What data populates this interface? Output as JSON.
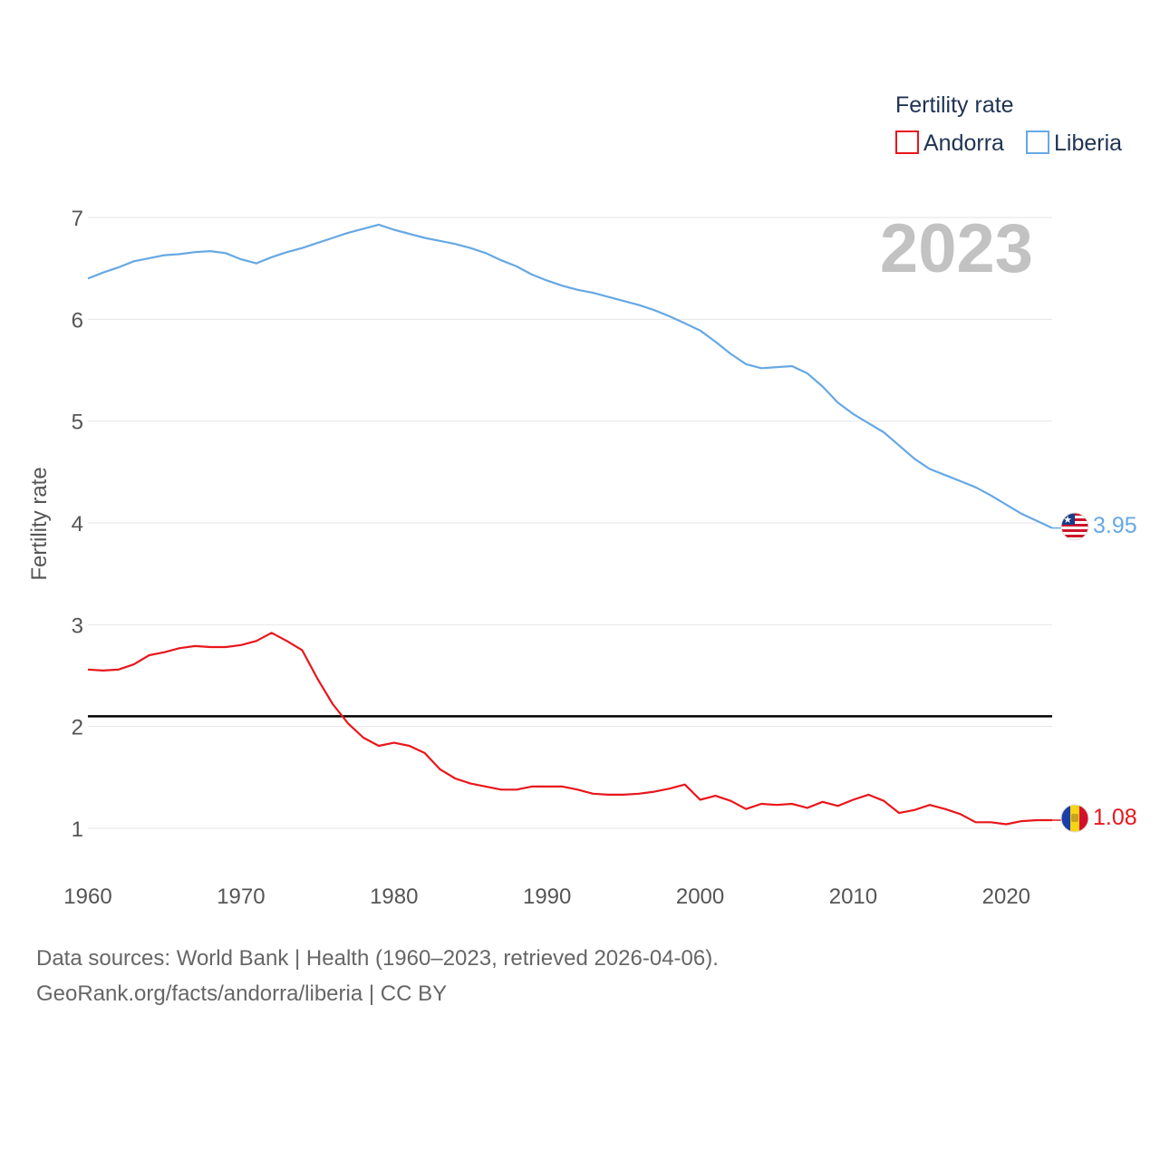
{
  "chart_data": {
    "type": "line",
    "title": "",
    "year_label": "2023",
    "ylabel": "Fertility rate",
    "xlabel": "",
    "xlim": [
      1960,
      2023
    ],
    "ylim": [
      0.3,
      7.4
    ],
    "x_ticks": [
      1960,
      1970,
      1980,
      1990,
      2000,
      2010,
      2020
    ],
    "y_ticks": [
      1,
      2,
      3,
      4,
      5,
      6,
      7
    ],
    "reference_line": 2.1,
    "legend": {
      "title": "Fertility rate",
      "position": "top-right"
    },
    "x": [
      1960,
      1961,
      1962,
      1963,
      1964,
      1965,
      1966,
      1967,
      1968,
      1969,
      1970,
      1971,
      1972,
      1973,
      1974,
      1975,
      1976,
      1977,
      1978,
      1979,
      1980,
      1981,
      1982,
      1983,
      1984,
      1985,
      1986,
      1987,
      1988,
      1989,
      1990,
      1991,
      1992,
      1993,
      1994,
      1995,
      1996,
      1997,
      1998,
      1999,
      2000,
      2001,
      2002,
      2003,
      2004,
      2005,
      2006,
      2007,
      2008,
      2009,
      2010,
      2011,
      2012,
      2013,
      2014,
      2015,
      2016,
      2017,
      2018,
      2019,
      2020,
      2021,
      2022,
      2023
    ],
    "series": [
      {
        "name": "Liberia",
        "color": "#66a8e4",
        "end_label": "3.95",
        "values": [
          6.4,
          6.46,
          6.51,
          6.57,
          6.6,
          6.63,
          6.64,
          6.66,
          6.67,
          6.65,
          6.59,
          6.55,
          6.61,
          6.66,
          6.7,
          6.75,
          6.8,
          6.85,
          6.89,
          6.93,
          6.88,
          6.84,
          6.8,
          6.77,
          6.74,
          6.7,
          6.65,
          6.58,
          6.52,
          6.44,
          6.38,
          6.33,
          6.29,
          6.26,
          6.22,
          6.18,
          6.14,
          6.09,
          6.03,
          5.96,
          5.89,
          5.78,
          5.66,
          5.56,
          5.52,
          5.53,
          5.54,
          5.47,
          5.34,
          5.18,
          5.07,
          4.98,
          4.89,
          4.76,
          4.63,
          4.53,
          4.47,
          4.41,
          4.35,
          4.27,
          4.18,
          4.09,
          4.02,
          3.95
        ]
      },
      {
        "name": "Andorra",
        "color": "#e8161b",
        "end_label": "1.08",
        "values": [
          2.56,
          2.55,
          2.56,
          2.61,
          2.7,
          2.73,
          2.77,
          2.79,
          2.78,
          2.78,
          2.8,
          2.84,
          2.92,
          2.84,
          2.75,
          2.47,
          2.22,
          2.03,
          1.89,
          1.81,
          1.84,
          1.81,
          1.74,
          1.58,
          1.49,
          1.44,
          1.41,
          1.38,
          1.38,
          1.41,
          1.41,
          1.41,
          1.38,
          1.34,
          1.33,
          1.33,
          1.34,
          1.36,
          1.39,
          1.43,
          1.28,
          1.32,
          1.27,
          1.19,
          1.24,
          1.23,
          1.24,
          1.2,
          1.26,
          1.22,
          1.28,
          1.33,
          1.27,
          1.15,
          1.18,
          1.23,
          1.19,
          1.14,
          1.06,
          1.06,
          1.04,
          1.07,
          1.08,
          1.08
        ]
      }
    ]
  },
  "footer": {
    "line1": "Data sources: World Bank | Health (1960–2023, retrieved 2026-04-06).",
    "line2": "GeoRank.org/facts/andorra/liberia | CC BY"
  }
}
